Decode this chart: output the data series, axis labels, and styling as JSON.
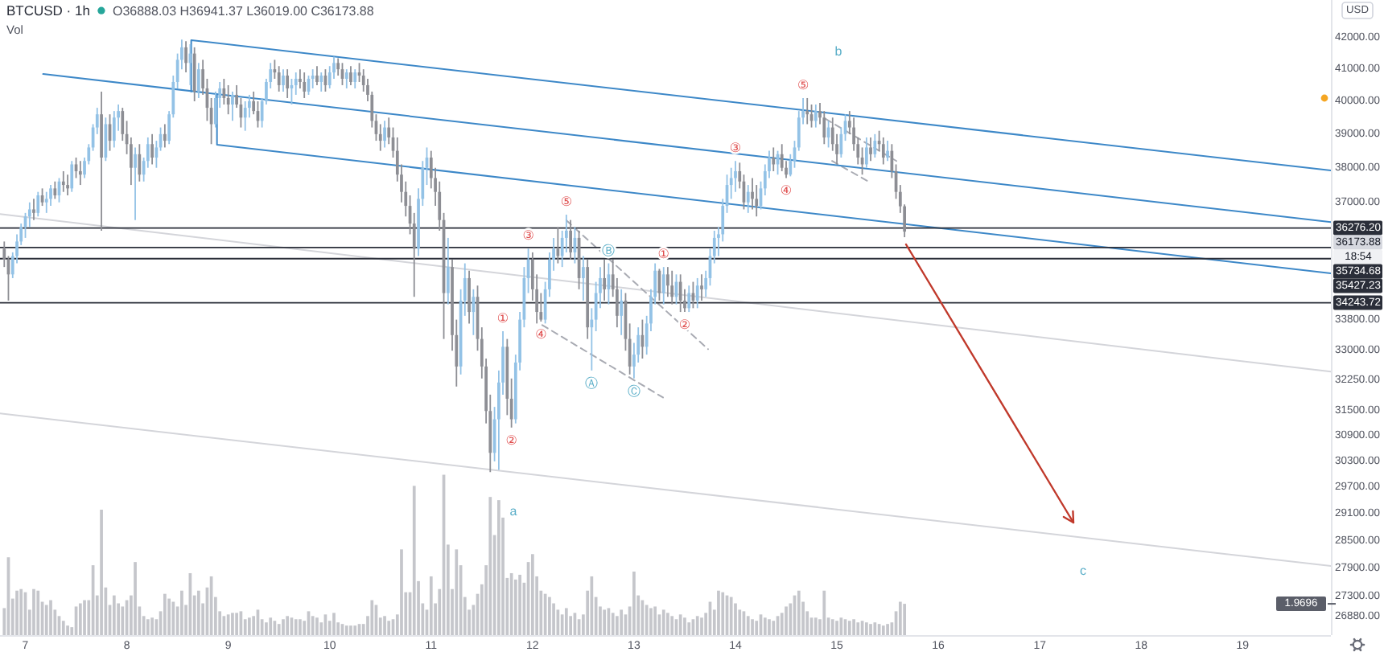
{
  "chart_data": {
    "type": "candlestick",
    "title": "BTCUSD · 1h",
    "subtitle": "O36888.03 H36941.37 L36019.00 C36173.88",
    "ylabel": "USD",
    "y2label": "Vol",
    "xlim": [
      6.75,
      19.87
    ],
    "xticks": [
      7,
      8,
      9,
      10,
      11,
      12,
      13,
      14,
      15,
      16,
      17,
      18,
      19
    ],
    "ylim": [
      26500,
      43250
    ],
    "log": true,
    "yticks": [
      {
        "value": 42000,
        "label": "42000.00"
      },
      {
        "value": 41000,
        "label": "41000.00"
      },
      {
        "value": 40000,
        "label": "40000.00"
      },
      {
        "value": 39000,
        "label": "39000.00"
      },
      {
        "value": 38000,
        "label": "38000.00"
      },
      {
        "value": 37000,
        "label": "37000.00"
      },
      {
        "value": 33800,
        "label": "33800.00"
      },
      {
        "value": 33000,
        "label": "33000.00"
      },
      {
        "value": 32250,
        "label": "32250.00"
      },
      {
        "value": 31500,
        "label": "31500.00"
      },
      {
        "value": 30900,
        "label": "30900.00"
      },
      {
        "value": 30300,
        "label": "30300.00"
      },
      {
        "value": 29700,
        "label": "29700.00"
      },
      {
        "value": 29100,
        "label": "29100.00"
      },
      {
        "value": 28500,
        "label": "28500.00"
      },
      {
        "value": 27900,
        "label": "27900.00"
      },
      {
        "value": 27300,
        "label": "27300.00"
      },
      {
        "value": 26880,
        "label": "26880.00"
      }
    ],
    "y2lim": [
      0,
      40
    ],
    "y2ticks": [
      {
        "value": 1.9696,
        "label": "1.9696"
      }
    ],
    "x": [
      6.792,
      6.833,
      6.875,
      6.917,
      6.958,
      7,
      7.042,
      7.083,
      7.125,
      7.167,
      7.208,
      7.25,
      7.292,
      7.333,
      7.375,
      7.417,
      7.458,
      7.5,
      7.542,
      7.583,
      7.625,
      7.667,
      7.708,
      7.75,
      7.792,
      7.833,
      7.875,
      7.917,
      7.958,
      8,
      8.042,
      8.083,
      8.125,
      8.167,
      8.208,
      8.25,
      8.292,
      8.333,
      8.375,
      8.417,
      8.458,
      8.5,
      8.542,
      8.583,
      8.625,
      8.667,
      8.708,
      8.75,
      8.792,
      8.833,
      8.875,
      8.917,
      8.958,
      9,
      9.042,
      9.083,
      9.125,
      9.167,
      9.208,
      9.25,
      9.292,
      9.333,
      9.375,
      9.417,
      9.458,
      9.5,
      9.542,
      9.583,
      9.625,
      9.667,
      9.708,
      9.75,
      9.792,
      9.833,
      9.875,
      9.917,
      9.958,
      10,
      10.042,
      10.083,
      10.125,
      10.167,
      10.208,
      10.25,
      10.292,
      10.333,
      10.375,
      10.417,
      10.458,
      10.5,
      10.542,
      10.583,
      10.625,
      10.667,
      10.708,
      10.75,
      10.792,
      10.833,
      10.875,
      10.917,
      10.958,
      11,
      11.042,
      11.083,
      11.125,
      11.167,
      11.208,
      11.25,
      11.292,
      11.333,
      11.375,
      11.417,
      11.458,
      11.5,
      11.542,
      11.583,
      11.625,
      11.667,
      11.708,
      11.75,
      11.792,
      11.833,
      11.875,
      11.917,
      11.958,
      12,
      12.042,
      12.083,
      12.125,
      12.167,
      12.208,
      12.25,
      12.292,
      12.333,
      12.375,
      12.417,
      12.458,
      12.5,
      12.542,
      12.583,
      12.625,
      12.667,
      12.708,
      12.75,
      12.792,
      12.833,
      12.875,
      12.917,
      12.958,
      13,
      13.042,
      13.083,
      13.125,
      13.167,
      13.208,
      13.25,
      13.292,
      13.333,
      13.375,
      13.417,
      13.458,
      13.5,
      13.542,
      13.583,
      13.625,
      13.667,
      13.708,
      13.75,
      13.792,
      13.833,
      13.875,
      13.917,
      13.958,
      14,
      14.042,
      14.083,
      14.125,
      14.167,
      14.208,
      14.25,
      14.292,
      14.333,
      14.375,
      14.417,
      14.458,
      14.5,
      14.542,
      14.583,
      14.625,
      14.667,
      14.708,
      14.75,
      14.792,
      14.833,
      14.875,
      14.917,
      14.958,
      15,
      15.042,
      15.083,
      15.125,
      15.167,
      15.208,
      15.25,
      15.292,
      15.333,
      15.375,
      15.417,
      15.458,
      15.5,
      15.542,
      15.583,
      15.625,
      15.667
    ],
    "ohlc": [
      [
        35700,
        35900,
        35200,
        35400
      ],
      [
        35400,
        35500,
        34300,
        35000
      ],
      [
        35000,
        35600,
        34900,
        35500
      ],
      [
        35500,
        36100,
        35300,
        35900
      ],
      [
        35900,
        36400,
        35800,
        36300
      ],
      [
        36300,
        36700,
        36000,
        36600
      ],
      [
        36600,
        37000,
        36300,
        36800
      ],
      [
        36800,
        37100,
        36500,
        36700
      ],
      [
        36700,
        37300,
        36600,
        37200
      ],
      [
        37200,
        37400,
        36900,
        37000
      ],
      [
        37000,
        37300,
        36700,
        37100
      ],
      [
        37100,
        37500,
        36900,
        37400
      ],
      [
        37400,
        37600,
        37100,
        37200
      ],
      [
        37200,
        37700,
        37000,
        37600
      ],
      [
        37600,
        37900,
        37300,
        37500
      ],
      [
        37500,
        37800,
        37200,
        37400
      ],
      [
        37400,
        38200,
        37300,
        38100
      ],
      [
        38100,
        38300,
        37700,
        37900
      ],
      [
        37900,
        38200,
        37500,
        37800
      ],
      [
        37800,
        38300,
        37700,
        38200
      ],
      [
        38200,
        38700,
        38100,
        38600
      ],
      [
        38600,
        39300,
        38500,
        39200
      ],
      [
        39200,
        39800,
        39000,
        39600
      ],
      [
        39600,
        40300,
        36200,
        38300
      ],
      [
        38300,
        39500,
        38200,
        39300
      ],
      [
        39300,
        39600,
        38500,
        38800
      ],
      [
        38800,
        39700,
        38600,
        39500
      ],
      [
        39500,
        39900,
        39100,
        39700
      ],
      [
        39700,
        39800,
        38800,
        39000
      ],
      [
        39000,
        39400,
        38400,
        38700
      ],
      [
        38700,
        38900,
        37500,
        38000
      ],
      [
        38000,
        38600,
        36500,
        38400
      ],
      [
        38400,
        38700,
        37600,
        37800
      ],
      [
        37800,
        38300,
        37600,
        38200
      ],
      [
        38200,
        38900,
        38000,
        38700
      ],
      [
        38700,
        39000,
        38100,
        38300
      ],
      [
        38300,
        38800,
        38000,
        38600
      ],
      [
        38600,
        39200,
        38500,
        39000
      ],
      [
        39000,
        39300,
        38600,
        38800
      ],
      [
        38800,
        39700,
        38700,
        39600
      ],
      [
        39600,
        40800,
        39500,
        40600
      ],
      [
        40600,
        41500,
        40400,
        41300
      ],
      [
        41300,
        41950,
        41000,
        41700
      ],
      [
        41700,
        41900,
        40900,
        41200
      ],
      [
        41200,
        41800,
        40500,
        41500
      ],
      [
        41500,
        41700,
        40000,
        40300
      ],
      [
        40300,
        41200,
        40100,
        41000
      ],
      [
        41000,
        41300,
        40200,
        40400
      ],
      [
        40400,
        40700,
        39400,
        39800
      ],
      [
        39800,
        40100,
        38700,
        39300
      ],
      [
        39300,
        40300,
        39200,
        40100
      ],
      [
        40100,
        40600,
        39800,
        40400
      ],
      [
        40400,
        40700,
        39900,
        40100
      ],
      [
        40100,
        40500,
        39600,
        39900
      ],
      [
        39900,
        40300,
        39400,
        40200
      ],
      [
        40200,
        40500,
        39800,
        39900
      ],
      [
        39900,
        40100,
        39200,
        39500
      ],
      [
        39500,
        40000,
        39100,
        39800
      ],
      [
        39800,
        40200,
        39500,
        40000
      ],
      [
        40000,
        40300,
        39600,
        39700
      ],
      [
        39700,
        40000,
        39200,
        39400
      ],
      [
        39400,
        40100,
        39200,
        40000
      ],
      [
        40000,
        40700,
        39900,
        40600
      ],
      [
        40600,
        41200,
        40400,
        41000
      ],
      [
        41000,
        41300,
        40700,
        40900
      ],
      [
        40900,
        41100,
        40300,
        40500
      ],
      [
        40500,
        41000,
        40300,
        40800
      ],
      [
        40800,
        41000,
        40100,
        40400
      ],
      [
        40400,
        40700,
        39900,
        40500
      ],
      [
        40500,
        40900,
        40200,
        40700
      ],
      [
        40700,
        41000,
        40400,
        40600
      ],
      [
        40600,
        40900,
        40100,
        40300
      ],
      [
        40300,
        40800,
        40200,
        40700
      ],
      [
        40700,
        41000,
        40400,
        40800
      ],
      [
        40800,
        41100,
        40500,
        40600
      ],
      [
        40600,
        40900,
        40300,
        40800
      ],
      [
        40800,
        41000,
        40300,
        40500
      ],
      [
        40500,
        41100,
        40400,
        40900
      ],
      [
        40900,
        41400,
        40700,
        41200
      ],
      [
        41200,
        41350,
        40800,
        41000
      ],
      [
        41000,
        41200,
        40500,
        40700
      ],
      [
        40700,
        41000,
        40400,
        40900
      ],
      [
        40900,
        41100,
        40500,
        40600
      ],
      [
        40600,
        41000,
        40400,
        40900
      ],
      [
        40900,
        41200,
        40600,
        40800
      ],
      [
        40800,
        41000,
        40300,
        40500
      ],
      [
        40500,
        40700,
        40000,
        40200
      ],
      [
        40200,
        40300,
        39200,
        39400
      ],
      [
        39400,
        39600,
        38800,
        39000
      ],
      [
        39000,
        39300,
        38500,
        38800
      ],
      [
        38800,
        39400,
        38600,
        39200
      ],
      [
        39200,
        39500,
        38700,
        38900
      ],
      [
        38900,
        39200,
        38300,
        38500
      ],
      [
        38500,
        38900,
        37600,
        37800
      ],
      [
        37800,
        38100,
        37000,
        37300
      ],
      [
        37300,
        37600,
        36600,
        36900
      ],
      [
        36900,
        37200,
        36100,
        36400
      ],
      [
        36400,
        36700,
        34400,
        35700
      ],
      [
        35700,
        37400,
        35500,
        37100
      ],
      [
        37100,
        38200,
        36900,
        38000
      ],
      [
        38000,
        38600,
        37500,
        38300
      ],
      [
        38300,
        38500,
        37400,
        37700
      ],
      [
        37700,
        38000,
        36900,
        37300
      ],
      [
        37300,
        37600,
        36200,
        36500
      ],
      [
        36500,
        36700,
        33300,
        34500
      ],
      [
        34500,
        36000,
        34200,
        35200
      ],
      [
        35200,
        35400,
        33000,
        33400
      ],
      [
        33400,
        33800,
        32100,
        32600
      ],
      [
        32600,
        34600,
        32400,
        34300
      ],
      [
        34300,
        35300,
        33900,
        34900
      ],
      [
        34900,
        35100,
        33700,
        34000
      ],
      [
        34000,
        34600,
        33400,
        34400
      ],
      [
        34400,
        34700,
        33000,
        33300
      ],
      [
        33300,
        33600,
        32300,
        32600
      ],
      [
        32600,
        32800,
        31200,
        31500
      ],
      [
        31500,
        31900,
        30050,
        30500
      ],
      [
        30500,
        31600,
        30300,
        31300
      ],
      [
        31300,
        32500,
        30100,
        32200
      ],
      [
        32200,
        33500,
        31900,
        33100
      ],
      [
        33100,
        33300,
        31400,
        31800
      ],
      [
        31800,
        32300,
        31100,
        31300
      ],
      [
        31300,
        32900,
        31200,
        32700
      ],
      [
        32700,
        34000,
        32500,
        33800
      ],
      [
        33800,
        35200,
        33600,
        34900
      ],
      [
        34900,
        35700,
        34500,
        35400
      ],
      [
        35400,
        35600,
        34300,
        34600
      ],
      [
        34600,
        35000,
        33700,
        34000
      ],
      [
        34000,
        34500,
        33750,
        33800
      ],
      [
        33800,
        34800,
        33700,
        34600
      ],
      [
        34600,
        35600,
        34400,
        35400
      ],
      [
        35400,
        36000,
        35100,
        35700
      ],
      [
        35700,
        36300,
        35300,
        35500
      ],
      [
        35500,
        36200,
        35200,
        36000
      ],
      [
        36000,
        36650,
        35600,
        36200
      ],
      [
        36200,
        36500,
        35400,
        35600
      ],
      [
        35600,
        36300,
        35300,
        36000
      ],
      [
        36000,
        36200,
        34600,
        34900
      ],
      [
        34900,
        35500,
        34300,
        35200
      ],
      [
        35200,
        35400,
        33300,
        33600
      ],
      [
        33600,
        34100,
        32500,
        33800
      ],
      [
        33800,
        34800,
        33500,
        34500
      ],
      [
        34500,
        35200,
        34100,
        34900
      ],
      [
        34900,
        35400,
        34300,
        34600
      ],
      [
        34600,
        35300,
        34200,
        35000
      ],
      [
        35000,
        35400,
        34400,
        34600
      ],
      [
        34600,
        34900,
        33600,
        33900
      ],
      [
        33900,
        34600,
        33400,
        34300
      ],
      [
        34300,
        34500,
        33000,
        33300
      ],
      [
        33300,
        33700,
        32400,
        32600
      ],
      [
        32600,
        33200,
        32300,
        32900
      ],
      [
        32900,
        33600,
        32700,
        33400
      ],
      [
        33400,
        33800,
        32800,
        33100
      ],
      [
        33100,
        33900,
        32900,
        33700
      ],
      [
        33700,
        34600,
        33500,
        34400
      ],
      [
        34400,
        35300,
        34200,
        35100
      ],
      [
        35100,
        35150,
        34300,
        34500
      ],
      [
        34500,
        35200,
        34200,
        35000
      ],
      [
        35000,
        35200,
        34400,
        34700
      ],
      [
        34700,
        35100,
        34200,
        34400
      ],
      [
        34400,
        35000,
        34200,
        34800
      ],
      [
        34800,
        35000,
        34000,
        34300
      ],
      [
        34300,
        34600,
        34000,
        34100
      ],
      [
        34100,
        34700,
        34000,
        34500
      ],
      [
        34500,
        34800,
        34100,
        34300
      ],
      [
        34300,
        34900,
        34100,
        34700
      ],
      [
        34700,
        35000,
        34300,
        34600
      ],
      [
        34600,
        35100,
        34400,
        34900
      ],
      [
        34900,
        35700,
        34700,
        35500
      ],
      [
        35500,
        36200,
        35300,
        36000
      ],
      [
        36000,
        36300,
        35500,
        36100
      ],
      [
        36100,
        37100,
        35900,
        36900
      ],
      [
        36900,
        37800,
        36700,
        37500
      ],
      [
        37500,
        38000,
        37100,
        37700
      ],
      [
        37700,
        38200,
        37300,
        37900
      ],
      [
        37900,
        38150,
        37400,
        37600
      ],
      [
        37600,
        37800,
        36800,
        37000
      ],
      [
        37000,
        37500,
        36700,
        37300
      ],
      [
        37300,
        37700,
        36800,
        37100
      ],
      [
        37100,
        37500,
        36600,
        36900
      ],
      [
        36900,
        37600,
        36800,
        37400
      ],
      [
        37400,
        38100,
        37200,
        37900
      ],
      [
        37900,
        38500,
        37700,
        38300
      ],
      [
        38300,
        38600,
        37900,
        38100
      ],
      [
        38100,
        38500,
        37800,
        38400
      ],
      [
        38400,
        38700,
        37900,
        38000
      ],
      [
        38000,
        38200,
        37700,
        37800
      ],
      [
        37800,
        38400,
        37750,
        38200
      ],
      [
        38200,
        38800,
        38000,
        38600
      ],
      [
        38600,
        39700,
        38500,
        39500
      ],
      [
        39500,
        40100,
        39300,
        39700
      ],
      [
        39700,
        40100,
        39300,
        39600
      ],
      [
        39600,
        39900,
        39200,
        39400
      ],
      [
        39400,
        39900,
        39200,
        39700
      ],
      [
        39700,
        39950,
        39300,
        39500
      ],
      [
        39500,
        39700,
        38700,
        38900
      ],
      [
        38900,
        39400,
        38600,
        39200
      ],
      [
        39200,
        39500,
        38500,
        38700
      ],
      [
        38700,
        39000,
        38100,
        38400
      ],
      [
        38400,
        39200,
        38300,
        39000
      ],
      [
        39000,
        39600,
        38800,
        39400
      ],
      [
        39400,
        39700,
        39000,
        39200
      ],
      [
        39200,
        39500,
        38500,
        38700
      ],
      [
        38700,
        38900,
        38100,
        38300
      ],
      [
        38300,
        38600,
        37800,
        38100
      ],
      [
        38100,
        38900,
        38000,
        38600
      ],
      [
        38600,
        38900,
        38200,
        38400
      ],
      [
        38400,
        39000,
        38300,
        38800
      ],
      [
        38800,
        39100,
        38500,
        38700
      ],
      [
        38700,
        38900,
        38100,
        38300
      ],
      [
        38300,
        38800,
        38200,
        38500
      ],
      [
        38500,
        38700,
        37700,
        37900
      ],
      [
        37900,
        38100,
        37100,
        37300
      ],
      [
        37300,
        37500,
        36700,
        36888.03
      ],
      [
        36888.03,
        36941.37,
        36019,
        36173.88
      ]
    ],
    "colors": [
      "#8d8e94",
      "#8d8e94",
      "#93c2e6",
      "#93c2e6",
      "#93c2e6",
      "#93c2e6",
      "#93c2e6",
      "#8d8e94",
      "#93c2e6",
      "#8d8e94",
      "#93c2e6",
      "#93c2e6",
      "#8d8e94",
      "#93c2e6",
      "#8d8e94",
      "#8d8e94",
      "#93c2e6",
      "#8d8e94",
      "#8d8e94",
      "#93c2e6",
      "#93c2e6",
      "#93c2e6",
      "#93c2e6",
      "#8d8e94",
      "#93c2e6",
      "#8d8e94",
      "#93c2e6",
      "#93c2e6",
      "#8d8e94",
      "#8d8e94",
      "#8d8e94",
      "#93c2e6",
      "#8d8e94",
      "#93c2e6",
      "#93c2e6",
      "#8d8e94",
      "#93c2e6",
      "#93c2e6",
      "#8d8e94",
      "#93c2e6",
      "#93c2e6",
      "#93c2e6",
      "#93c2e6",
      "#8d8e94",
      "#93c2e6",
      "#8d8e94",
      "#93c2e6",
      "#8d8e94",
      "#8d8e94",
      "#8d8e94",
      "#93c2e6",
      "#93c2e6",
      "#8d8e94",
      "#8d8e94",
      "#93c2e6",
      "#8d8e94",
      "#8d8e94",
      "#93c2e6",
      "#93c2e6",
      "#8d8e94",
      "#8d8e94",
      "#93c2e6",
      "#93c2e6",
      "#93c2e6",
      "#8d8e94",
      "#8d8e94",
      "#93c2e6",
      "#8d8e94",
      "#93c2e6",
      "#93c2e6",
      "#8d8e94",
      "#8d8e94",
      "#93c2e6",
      "#93c2e6",
      "#8d8e94",
      "#93c2e6",
      "#8d8e94",
      "#93c2e6",
      "#93c2e6",
      "#8d8e94",
      "#8d8e94",
      "#93c2e6",
      "#8d8e94",
      "#93c2e6",
      "#8d8e94",
      "#8d8e94",
      "#8d8e94",
      "#8d8e94",
      "#8d8e94",
      "#8d8e94",
      "#93c2e6",
      "#8d8e94",
      "#8d8e94",
      "#8d8e94",
      "#8d8e94",
      "#8d8e94",
      "#8d8e94",
      "#8d8e94",
      "#93c2e6",
      "#93c2e6",
      "#93c2e6",
      "#8d8e94",
      "#8d8e94",
      "#8d8e94",
      "#8d8e94",
      "#93c2e6",
      "#8d8e94",
      "#8d8e94",
      "#93c2e6",
      "#93c2e6",
      "#8d8e94",
      "#93c2e6",
      "#8d8e94",
      "#8d8e94",
      "#8d8e94",
      "#8d8e94",
      "#93c2e6",
      "#93c2e6",
      "#93c2e6",
      "#8d8e94",
      "#8d8e94",
      "#93c2e6",
      "#93c2e6",
      "#93c2e6",
      "#93c2e6",
      "#8d8e94",
      "#8d8e94",
      "#8d8e94",
      "#93c2e6",
      "#93c2e6",
      "#93c2e6",
      "#8d8e94",
      "#93c2e6",
      "#93c2e6",
      "#8d8e94",
      "#93c2e6",
      "#8d8e94",
      "#93c2e6",
      "#8d8e94",
      "#93c2e6",
      "#93c2e6",
      "#93c2e6",
      "#8d8e94",
      "#93c2e6",
      "#8d8e94",
      "#8d8e94",
      "#93c2e6",
      "#8d8e94",
      "#8d8e94",
      "#93c2e6",
      "#93c2e6",
      "#8d8e94",
      "#93c2e6",
      "#93c2e6",
      "#93c2e6",
      "#8d8e94",
      "#93c2e6",
      "#8d8e94",
      "#8d8e94",
      "#93c2e6",
      "#8d8e94",
      "#8d8e94",
      "#93c2e6",
      "#8d8e94",
      "#93c2e6",
      "#8d8e94",
      "#93c2e6",
      "#93c2e6",
      "#93c2e6",
      "#93c2e6",
      "#93c2e6",
      "#93c2e6",
      "#93c2e6",
      "#93c2e6",
      "#8d8e94",
      "#8d8e94",
      "#93c2e6",
      "#8d8e94",
      "#8d8e94",
      "#93c2e6",
      "#93c2e6",
      "#93c2e6",
      "#8d8e94",
      "#93c2e6",
      "#8d8e94",
      "#8d8e94",
      "#93c2e6",
      "#93c2e6",
      "#93c2e6",
      "#93c2e6",
      "#8d8e94",
      "#8d8e94",
      "#93c2e6",
      "#8d8e94",
      "#8d8e94",
      "#93c2e6",
      "#8d8e94",
      "#8d8e94",
      "#93c2e6",
      "#93c2e6",
      "#8d8e94",
      "#8d8e94",
      "#8d8e94",
      "#8d8e94",
      "#93c2e6",
      "#8d8e94",
      "#93c2e6",
      "#8d8e94",
      "#8d8e94",
      "#93c2e6",
      "#8d8e94",
      "#8d8e94",
      "#8d8e94",
      "#8d8e94"
    ],
    "series": [
      {
        "type": "bar",
        "axis": "y2",
        "color": "#c5c6cb",
        "values": [
          1.7,
          4.9,
          2.3,
          2.8,
          2.9,
          2.7,
          1.6,
          2.9,
          2.8,
          2.1,
          1.9,
          2.2,
          1.6,
          1.2,
          0.9,
          0.6,
          0.5,
          1.8,
          2.0,
          2.2,
          2.2,
          4.4,
          2.5,
          7.9,
          3.0,
          1.9,
          2.5,
          2.0,
          1.8,
          2.2,
          2.5,
          4.6,
          1.8,
          1.2,
          1.0,
          1.1,
          1.0,
          1.5,
          2.6,
          2.3,
          2.1,
          1.8,
          2.8,
          1.9,
          3.9,
          2.5,
          2.8,
          2.0,
          3.0,
          3.7,
          2.4,
          1.5,
          1.2,
          1.3,
          1.4,
          1.4,
          1.5,
          1.0,
          1.1,
          1.2,
          1.6,
          1.0,
          0.8,
          1.1,
          0.9,
          0.7,
          1.0,
          1.2,
          1.1,
          1.0,
          1.0,
          0.9,
          1.5,
          1.2,
          1.1,
          0.8,
          1.3,
          0.9,
          1.4,
          0.8,
          0.7,
          0.6,
          0.6,
          0.6,
          0.7,
          0.7,
          1.2,
          2.2,
          1.9,
          1.1,
          1.2,
          0.9,
          1.0,
          1.3,
          5.4,
          2.7,
          2.7,
          9.4,
          3.4,
          2.0,
          1.6,
          3.7,
          2.0,
          2.9,
          10.1,
          5.7,
          2.9,
          5.4,
          4.4,
          2.4,
          1.6,
          1.9,
          2.6,
          3.2,
          4.4,
          8.7,
          6.3,
          8.5,
          7.4,
          3.6,
          3.9,
          3.5,
          3.8,
          3.3,
          4.6,
          5.1,
          3.7,
          2.8,
          2.6,
          2.4,
          2.0,
          1.6,
          1.3,
          1.7,
          1.2,
          1.4,
          1.0,
          1.3,
          2.8,
          3.7,
          2.4,
          1.8,
          1.6,
          1.7,
          1.4,
          1.2,
          1.6,
          1.3,
          1.8,
          4.0,
          2.5,
          2.2,
          1.9,
          1.7,
          1.8,
          1.3,
          1.6,
          1.4,
          1.2,
          1.0,
          1.3,
          1.1,
          0.8,
          1.0,
          1.2,
          1.1,
          1.4,
          2.1,
          1.6,
          2.8,
          2.7,
          2.5,
          2.4,
          2.0,
          1.6,
          1.5,
          1.2,
          1.0,
          0.9,
          1.3,
          1.1,
          1.0,
          0.9,
          1.2,
          1.4,
          1.8,
          2.0,
          2.5,
          2.8,
          2.1,
          1.5,
          1.1,
          1.1,
          1.0,
          2.8,
          1.1,
          1.0,
          0.9,
          1.1,
          1.0,
          0.9,
          1.0,
          0.8,
          0.9,
          0.8,
          0.7,
          0.8,
          0.7,
          0.6,
          0.7,
          0.8,
          1.5,
          2.1,
          1.9696
        ]
      },
      {
        "type": "line",
        "color": "#d4d5da",
        "x": [
          6.75,
          19.87
        ],
        "values": [
          36670,
          32470
        ]
      },
      {
        "type": "line",
        "color": "#d4d5da",
        "x": [
          6.75,
          19.87
        ],
        "values": [
          31440,
          27950
        ]
      },
      {
        "type": "line",
        "color": "#a9abb3",
        "line_style": "dashed",
        "x": [
          12.333,
          13.73
        ],
        "values": [
          36490,
          33040
        ]
      },
      {
        "type": "line",
        "color": "#a9abb3",
        "line_style": "dashed",
        "x": [
          12.095,
          13.286
        ],
        "values": [
          33660,
          31830
        ]
      },
      {
        "type": "line",
        "color": "#a9abb3",
        "line_style": "dashed",
        "x": [
          14.889,
          15.587
        ],
        "values": [
          39460,
          38200
        ]
      },
      {
        "type": "line",
        "color": "#a9abb3",
        "line_style": "dashed",
        "x": [
          14.952,
          15.317
        ],
        "values": [
          38200,
          37590
        ]
      },
      {
        "type": "line",
        "color": "#3d88c8",
        "x": [
          19.87,
          8.635,
          8.635
        ],
        "values": [
          37920,
          41930,
          40300
        ]
      },
      {
        "type": "line",
        "color": "#3d88c8",
        "x": [
          7.175,
          19.87
        ],
        "values": [
          40850,
          36440
        ]
      },
      {
        "type": "line",
        "color": "#3d88c8",
        "x": [
          8.889,
          8.889,
          19.87
        ],
        "values": [
          40200,
          38680,
          35030
        ]
      }
    ],
    "ref_lines": [
      {
        "axis": "y",
        "value": 36276.2,
        "label": "36276.20",
        "color": "#2a2e39"
      },
      {
        "axis": "y",
        "value": 35734.68,
        "label": "35734.68",
        "color": "#2a2e39"
      },
      {
        "axis": "y",
        "value": 35427.23,
        "label": "35427.23",
        "color": "#2a2e39"
      },
      {
        "axis": "y",
        "value": 34243.72,
        "label": "34243.72",
        "color": "#2a2e39"
      }
    ],
    "annotations": [
      "36173.88",
      "18:54",
      "a",
      "b",
      "c",
      {
        "text": "①",
        "x": 11.708,
        "y": 33500
      },
      {
        "text": "②",
        "x": 11.792,
        "y": 31100
      },
      {
        "text": "③",
        "x": 11.958,
        "y": 35700
      },
      {
        "text": "④",
        "x": 12.083,
        "y": 33750
      },
      {
        "text": "⑤",
        "x": 12.333,
        "y": 36650
      },
      {
        "text": "①",
        "x": 13.292,
        "y": 35200
      },
      {
        "text": "②",
        "x": 13.5,
        "y": 34000
      },
      {
        "text": "③",
        "x": 14,
        "y": 38200
      },
      {
        "text": "④",
        "x": 14.5,
        "y": 37700
      },
      {
        "text": "⑤",
        "x": 14.667,
        "y": 40100
      },
      {
        "text": "Ⓐ",
        "x": 12.583,
        "y": 32500
      },
      {
        "text": "Ⓑ",
        "x": 12.75,
        "y": 35300
      },
      {
        "text": "Ⓒ",
        "x": 13,
        "y": 32300
      }
    ]
  }
}
